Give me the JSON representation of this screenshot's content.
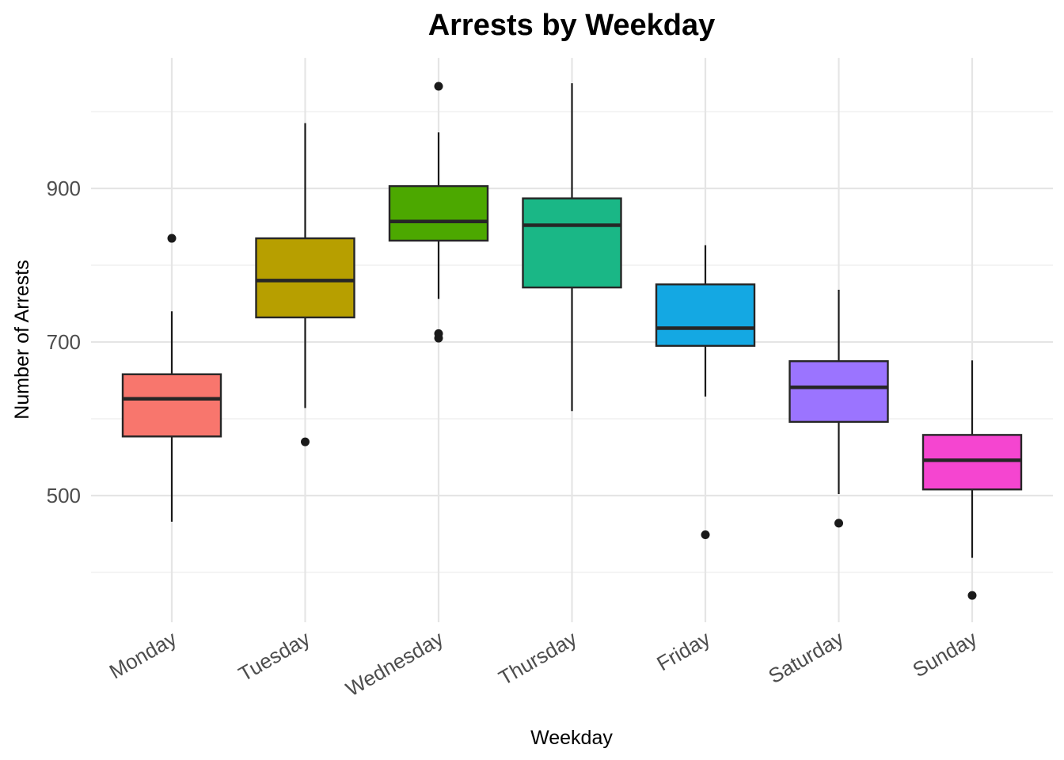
{
  "chart_data": {
    "type": "boxplot",
    "title": "Arrests by Weekday",
    "xlabel": "Weekday",
    "ylabel": "Number of Arrests",
    "ylim": [
      335,
      1070
    ],
    "yticks": [
      500,
      700,
      900
    ],
    "grid": true,
    "legend": "none",
    "categories": [
      "Monday",
      "Tuesday",
      "Wednesday",
      "Thursday",
      "Friday",
      "Saturday",
      "Sunday"
    ],
    "boxes": [
      {
        "category": "Monday",
        "color": "#F8766D",
        "whisker_low": 466,
        "q1": 577,
        "median": 626,
        "q3": 658,
        "whisker_high": 740,
        "outliers": [
          835
        ]
      },
      {
        "category": "Tuesday",
        "color": "#B79F00",
        "whisker_low": 614,
        "q1": 732,
        "median": 780,
        "q3": 835,
        "whisker_high": 985,
        "outliers": [
          570
        ]
      },
      {
        "category": "Wednesday",
        "color": "#4CA800",
        "whisker_low": 756,
        "q1": 832,
        "median": 857,
        "q3": 903,
        "whisker_high": 973,
        "outliers": [
          1033,
          711,
          705
        ]
      },
      {
        "category": "Thursday",
        "color": "#1AB786",
        "whisker_low": 610,
        "q1": 771,
        "median": 852,
        "q3": 887,
        "whisker_high": 1037,
        "outliers": []
      },
      {
        "category": "Friday",
        "color": "#14A8E3",
        "whisker_low": 629,
        "q1": 695,
        "median": 718,
        "q3": 775,
        "whisker_high": 826,
        "outliers": [
          449
        ]
      },
      {
        "category": "Saturday",
        "color": "#9B74FF",
        "whisker_low": 502,
        "q1": 596,
        "median": 641,
        "q3": 675,
        "whisker_high": 768,
        "outliers": [
          464
        ]
      },
      {
        "category": "Sunday",
        "color": "#F545D0",
        "whisker_low": 419,
        "q1": 508,
        "median": 546,
        "q3": 579,
        "whisker_high": 676,
        "outliers": [
          370
        ]
      }
    ]
  }
}
